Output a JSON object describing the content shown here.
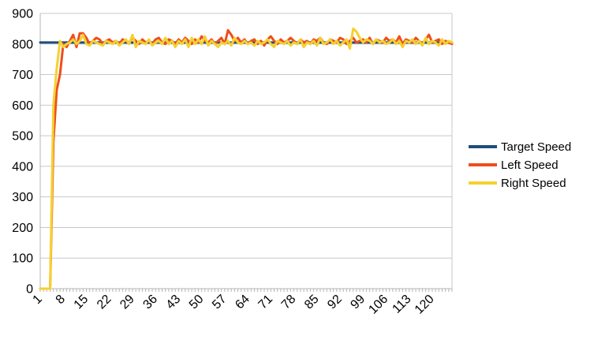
{
  "chart_data": {
    "type": "line",
    "title": "",
    "xlabel": "",
    "ylabel": "",
    "x_range": [
      1,
      126
    ],
    "x_tick_labels": [
      "1",
      "8",
      "15",
      "22",
      "29",
      "36",
      "43",
      "50",
      "57",
      "64",
      "71",
      "78",
      "85",
      "92",
      "99",
      "106",
      "113",
      "120"
    ],
    "ylim": [
      0,
      900
    ],
    "y_tick_labels": [
      "0",
      "100",
      "200",
      "300",
      "400",
      "500",
      "600",
      "700",
      "800",
      "900"
    ],
    "grid": "horizontal",
    "legend_position": "right",
    "colors": {
      "target": "#1f4e79",
      "left": "#ee4e1b",
      "right": "#f5d130",
      "grid": "#c8c8c8",
      "axis": "#b4b4b4"
    },
    "series": [
      {
        "name": "Target Speed",
        "color": "#1f4e79",
        "values": [
          805,
          805,
          805,
          805,
          805,
          805,
          805,
          805,
          805,
          805,
          805,
          805,
          805,
          805,
          805,
          805,
          805,
          805,
          805,
          805,
          805,
          805,
          805,
          805,
          805,
          805,
          805,
          805,
          805,
          805,
          805,
          805,
          805,
          805,
          805,
          805,
          805,
          805,
          805,
          805,
          805,
          805,
          805,
          805,
          805,
          805,
          805,
          805,
          805,
          805,
          805,
          805,
          805,
          805,
          805,
          805,
          805,
          805,
          805,
          805,
          805,
          805,
          805,
          805,
          805,
          805,
          805,
          805,
          805,
          805,
          805,
          805,
          805,
          805,
          805,
          805,
          805,
          805,
          805,
          805,
          805,
          805,
          805,
          805,
          805,
          805,
          805,
          805,
          805,
          805,
          805,
          805,
          805,
          805,
          805,
          805,
          805,
          805,
          805,
          805,
          805,
          805,
          805,
          805,
          805,
          805,
          805,
          805,
          805,
          805,
          805,
          805,
          805,
          805,
          805,
          805,
          805,
          805,
          805,
          805,
          805,
          805,
          805,
          805,
          805,
          805
        ]
      },
      {
        "name": "Left Speed",
        "color": "#ee4e1b",
        "values": [
          0,
          0,
          0,
          0,
          480,
          650,
          700,
          800,
          790,
          810,
          830,
          790,
          835,
          835,
          820,
          800,
          810,
          820,
          815,
          800,
          810,
          815,
          805,
          810,
          800,
          815,
          810,
          805,
          820,
          810,
          800,
          815,
          805,
          810,
          800,
          815,
          820,
          805,
          800,
          815,
          810,
          800,
          815,
          805,
          820,
          810,
          800,
          815,
          805,
          825,
          810,
          805,
          815,
          800,
          810,
          820,
          800,
          845,
          830,
          810,
          820,
          805,
          815,
          800,
          810,
          815,
          800,
          810,
          795,
          815,
          825,
          810,
          800,
          815,
          805,
          810,
          820,
          810,
          800,
          815,
          805,
          810,
          800,
          815,
          810,
          820,
          805,
          800,
          815,
          810,
          805,
          820,
          815,
          800,
          810,
          820,
          805,
          810,
          815,
          805,
          820,
          800,
          815,
          810,
          805,
          820,
          810,
          815,
          805,
          825,
          800,
          815,
          810,
          805,
          820,
          810,
          800,
          815,
          830,
          805,
          810,
          815,
          800,
          810,
          805,
          800
        ]
      },
      {
        "name": "Right Speed",
        "color": "#f5d130",
        "values": [
          0,
          0,
          0,
          0,
          600,
          720,
          810,
          790,
          800,
          805,
          815,
          800,
          810,
          830,
          800,
          795,
          810,
          805,
          800,
          795,
          810,
          805,
          800,
          810,
          795,
          805,
          815,
          800,
          830,
          790,
          810,
          805,
          800,
          815,
          795,
          805,
          810,
          800,
          820,
          800,
          810,
          790,
          810,
          800,
          815,
          790,
          820,
          800,
          815,
          800,
          825,
          795,
          810,
          800,
          790,
          805,
          800,
          810,
          795,
          820,
          805,
          800,
          810,
          800,
          805,
          795,
          810,
          800,
          805,
          815,
          800,
          790,
          810,
          805,
          800,
          810,
          795,
          805,
          800,
          815,
          790,
          805,
          800,
          810,
          795,
          820,
          800,
          805,
          815,
          800,
          810,
          795,
          805,
          815,
          785,
          850,
          840,
          820,
          805,
          815,
          810,
          800,
          815,
          805,
          810,
          800,
          805,
          815,
          800,
          810,
          790,
          810,
          805,
          815,
          800,
          810,
          795,
          820,
          800,
          810,
          805,
          795,
          815,
          800,
          810,
          805
        ]
      }
    ]
  }
}
